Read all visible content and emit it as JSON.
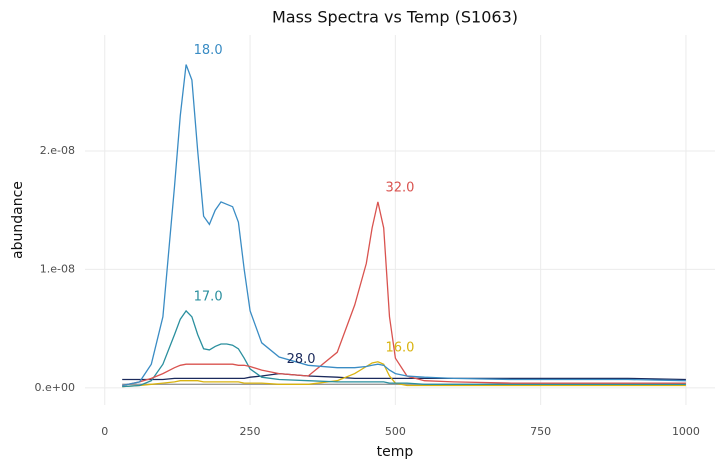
{
  "chart_data": {
    "type": "line",
    "title": "Mass Spectra vs Temp (S1063)",
    "x_label": "temp",
    "y_label": "abundance",
    "x": [
      30,
      60,
      80,
      100,
      120,
      130,
      140,
      150,
      160,
      170,
      180,
      190,
      200,
      210,
      220,
      230,
      240,
      250,
      270,
      300,
      350,
      400,
      430,
      450,
      460,
      470,
      480,
      490,
      500,
      520,
      550,
      600,
      700,
      800,
      900,
      1000
    ],
    "xlim": [
      -34,
      1050
    ],
    "xticks": [
      0,
      250,
      500,
      750,
      1000
    ],
    "ylim": [
      -1.45e-09,
      2.98e-08
    ],
    "yticks": [
      {
        "value": 0,
        "label": "0.e+00"
      },
      {
        "value": 1e-08,
        "label": "1.e-08"
      },
      {
        "value": 2e-08,
        "label": "2.e-08"
      }
    ],
    "grid": true,
    "series": [
      {
        "color": "#9a9a9a",
        "values": [
          3e-10,
          3e-10,
          3e-10,
          3e-10,
          3e-10,
          3e-10,
          3e-10,
          3e-10,
          3e-10,
          3e-10,
          3e-10,
          3e-10,
          3e-10,
          3e-10,
          3e-10,
          3e-10,
          3e-10,
          3e-10,
          3e-10,
          3e-10,
          3e-10,
          3e-10,
          3e-10,
          3e-10,
          3e-10,
          3e-10,
          3e-10,
          3e-10,
          3e-10,
          3e-10,
          3e-10,
          3e-10,
          3e-10,
          3e-10,
          3e-10,
          3e-10
        ]
      },
      {
        "name": "28.0",
        "color": "#1b2a5c",
        "values": [
          7e-10,
          7e-10,
          7e-10,
          7e-10,
          8e-10,
          8e-10,
          8e-10,
          8e-10,
          8e-10,
          8e-10,
          8e-10,
          8e-10,
          8e-10,
          8e-10,
          8e-10,
          8e-10,
          8e-10,
          9e-10,
          1e-09,
          1.2e-09,
          1e-09,
          9e-10,
          8e-10,
          8e-10,
          8e-10,
          8e-10,
          8e-10,
          8e-10,
          8e-10,
          8e-10,
          8e-10,
          8e-10,
          8e-10,
          8e-10,
          8e-10,
          7e-10
        ]
      },
      {
        "name": "16.0",
        "color": "#d9b310",
        "values": [
          1e-10,
          2e-10,
          3e-10,
          4e-10,
          5e-10,
          6e-10,
          6e-10,
          6e-10,
          6e-10,
          5e-10,
          5e-10,
          5e-10,
          5e-10,
          5e-10,
          5e-10,
          5e-10,
          4e-10,
          4e-10,
          4e-10,
          3e-10,
          3e-10,
          6e-10,
          1.2e-09,
          1.8e-09,
          2.1e-09,
          2.2e-09,
          2e-09,
          1e-09,
          4e-10,
          2e-10,
          2e-10,
          2e-10,
          2e-10,
          2e-10,
          2e-10,
          2e-10
        ]
      },
      {
        "name": "17.0",
        "color": "#2a8f9e",
        "values": [
          1e-10,
          2e-10,
          6e-10,
          2e-09,
          4.5e-09,
          5.8e-09,
          6.5e-09,
          6e-09,
          4.5e-09,
          3.3e-09,
          3.2e-09,
          3.5e-09,
          3.7e-09,
          3.7e-09,
          3.6e-09,
          3.3e-09,
          2.5e-09,
          1.6e-09,
          9e-10,
          7e-10,
          6e-10,
          5e-10,
          5e-10,
          5e-10,
          5e-10,
          5e-10,
          5e-10,
          4e-10,
          4e-10,
          4e-10,
          3e-10,
          3e-10,
          3e-10,
          3e-10,
          3e-10,
          3e-10
        ]
      },
      {
        "name": "32.0",
        "color": "#d9534f",
        "values": [
          2e-10,
          5e-10,
          8e-10,
          1.2e-09,
          1.7e-09,
          1.9e-09,
          2e-09,
          2e-09,
          2e-09,
          2e-09,
          2e-09,
          2e-09,
          2e-09,
          2e-09,
          2e-09,
          1.9e-09,
          1.9e-09,
          1.8e-09,
          1.5e-09,
          1.2e-09,
          1e-09,
          3e-09,
          7e-09,
          1.05e-08,
          1.35e-08,
          1.57e-08,
          1.35e-08,
          6e-09,
          2.5e-09,
          1e-09,
          6e-10,
          5e-10,
          4e-10,
          4e-10,
          4e-10,
          4e-10
        ]
      },
      {
        "name": "18.0",
        "color": "#3a8cc4",
        "values": [
          2e-10,
          5e-10,
          2e-09,
          6e-09,
          1.7e-08,
          2.3e-08,
          2.73e-08,
          2.6e-08,
          2e-08,
          1.45e-08,
          1.38e-08,
          1.5e-08,
          1.57e-08,
          1.55e-08,
          1.53e-08,
          1.4e-08,
          1e-08,
          6.5e-09,
          3.8e-09,
          2.6e-09,
          1.9e-09,
          1.7e-09,
          1.7e-09,
          1.8e-09,
          1.9e-09,
          2e-09,
          1.9e-09,
          1.5e-09,
          1.2e-09,
          1e-09,
          9e-10,
          8e-10,
          7e-10,
          7e-10,
          7e-10,
          6e-10
        ]
      }
    ]
  }
}
